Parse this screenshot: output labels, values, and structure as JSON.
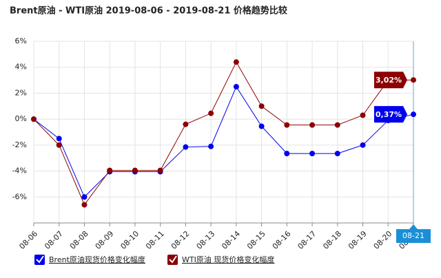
{
  "chart_data": {
    "type": "line",
    "title": "Brent原油 - WTI原油 2019-08-06 - 2019-08-21 价格趋势比较",
    "categories": [
      "08-06",
      "08-07",
      "08-08",
      "08-09",
      "08-10",
      "08-11",
      "08-12",
      "08-13",
      "08-14",
      "08-15",
      "08-16",
      "08-17",
      "08-18",
      "08-19",
      "08-20",
      "08-21"
    ],
    "series": [
      {
        "name": "Brent原油现货价格变化幅度",
        "color": "#0000ee",
        "values": [
          0,
          -1.5,
          -6.0,
          -4.05,
          -4.05,
          -4.05,
          -2.15,
          -2.1,
          2.5,
          -0.55,
          -2.65,
          -2.65,
          -2.65,
          -2.0,
          -0.1,
          0.37
        ],
        "value_labels": [
          null,
          null,
          null,
          null,
          null,
          null,
          null,
          null,
          null,
          null,
          null,
          null,
          null,
          null,
          null,
          "0,37%"
        ]
      },
      {
        "name": "WTI原油 现货价格变化幅度",
        "color": "#8b0000",
        "values": [
          0,
          -2.0,
          -6.6,
          -3.95,
          -3.95,
          -3.95,
          -0.4,
          0.45,
          4.4,
          1.0,
          -0.45,
          -0.45,
          -0.45,
          0.3,
          3.0,
          3.02
        ],
        "value_labels": [
          null,
          null,
          null,
          null,
          null,
          null,
          null,
          null,
          null,
          null,
          null,
          null,
          null,
          null,
          null,
          "3,02%"
        ]
      }
    ],
    "ylim": [
      -8,
      6
    ],
    "yticks": [
      {
        "value": -6,
        "label": "-6%"
      },
      {
        "value": -4,
        "label": "-4%"
      },
      {
        "value": -2,
        "label": "-2%"
      },
      {
        "value": 0,
        "label": "0%"
      },
      {
        "value": 2,
        "label": "2%"
      },
      {
        "value": 4,
        "label": "4%"
      },
      {
        "value": 6,
        "label": "6%"
      }
    ],
    "grid": true
  }
}
